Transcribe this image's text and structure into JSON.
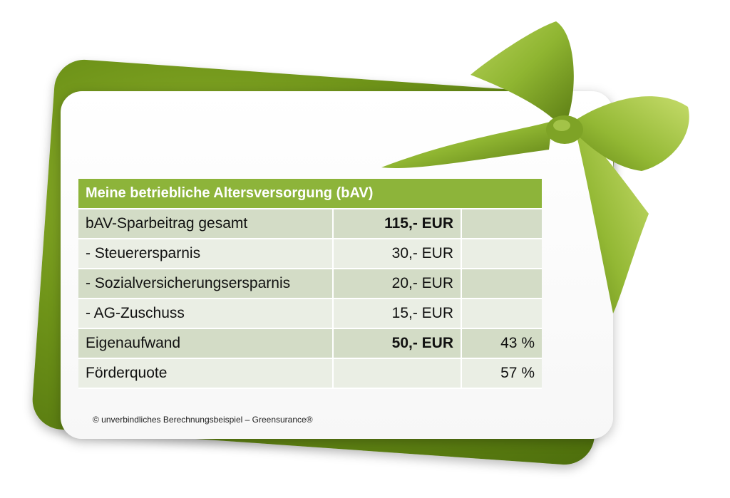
{
  "colors": {
    "back_card": "#6f9419",
    "header_fill": "#8db43a",
    "row_dark": "#d3dcc6",
    "row_light": "#eaeee4",
    "bow": "#8fb531"
  },
  "table": {
    "title": "Meine betriebliche Altersversorgung (bAV)",
    "rows": [
      {
        "label": "bAV-Sparbeitrag gesamt",
        "amount": "115,- EUR",
        "percent": ""
      },
      {
        "label": "- Steuerersparnis",
        "amount": "30,- EUR",
        "percent": ""
      },
      {
        "label": "- Sozialversicherungsersparnis",
        "amount": "20,- EUR",
        "percent": ""
      },
      {
        "label": "- AG-Zuschuss",
        "amount": "15,- EUR",
        "percent": ""
      },
      {
        "label": "Eigenaufwand",
        "amount": "50,- EUR",
        "percent": "43 %"
      },
      {
        "label": "Förderquote",
        "amount": "",
        "percent": "57 %"
      }
    ]
  },
  "footnote": "© unverbindliches Berechnungsbeispiel – Greensurance®"
}
